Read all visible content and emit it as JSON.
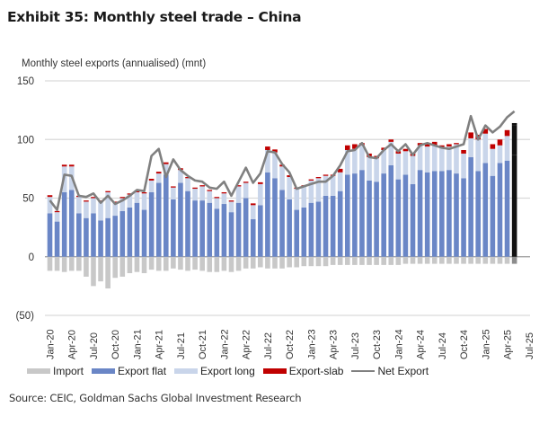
{
  "header": {
    "title": "Exhibit 35: Monthly steel trade – China",
    "subtitle": "Monthly steel exports (annualised) (mnt)",
    "source": "Source: CEIC, Goldman Sachs Global Investment Research"
  },
  "chart_data": {
    "type": "bar",
    "stacked": true,
    "title": "Exhibit 35: Monthly steel trade – China",
    "ylabel": "Monthly steel exports (annualised) (mnt)",
    "xlabel": "",
    "ylim": [
      -50,
      150
    ],
    "yticks": [
      150,
      100,
      50,
      0,
      -50
    ],
    "ytick_labels": [
      "150",
      "100",
      "50",
      "0",
      "(50)"
    ],
    "grid": true,
    "legend_position": "bottom",
    "colors": {
      "Import": "#c8c8c8",
      "Export flat": "#6a86c6",
      "Export long": "#c9d5ea",
      "Export-slab": "#c00000",
      "Net Export": "#808080",
      "highlight": "#111111"
    },
    "xtick_labels": [
      "Jan-20",
      "Apr-20",
      "Jul-20",
      "Oct-20",
      "Jan-21",
      "Apr-21",
      "Jul-21",
      "Oct-21",
      "Jan-22",
      "Apr-22",
      "Jul-22",
      "Oct-22",
      "Jan-23",
      "Apr-23",
      "Jul-23",
      "Oct-23",
      "Jan-24",
      "Apr-24",
      "Jul-24",
      "Oct-24",
      "Jan-25",
      "Apr-25",
      "Jul-25"
    ],
    "categories": [
      "Jan-20",
      "Feb-20",
      "Mar-20",
      "Apr-20",
      "May-20",
      "Jun-20",
      "Jul-20",
      "Aug-20",
      "Sep-20",
      "Oct-20",
      "Nov-20",
      "Dec-20",
      "Jan-21",
      "Feb-21",
      "Mar-21",
      "Apr-21",
      "May-21",
      "Jun-21",
      "Jul-21",
      "Aug-21",
      "Sep-21",
      "Oct-21",
      "Nov-21",
      "Dec-21",
      "Jan-22",
      "Feb-22",
      "Mar-22",
      "Apr-22",
      "May-22",
      "Jun-22",
      "Jul-22",
      "Aug-22",
      "Sep-22",
      "Oct-22",
      "Nov-22",
      "Dec-22",
      "Jan-23",
      "Feb-23",
      "Mar-23",
      "Apr-23",
      "May-23",
      "Jun-23",
      "Jul-23",
      "Aug-23",
      "Sep-23",
      "Oct-23",
      "Nov-23",
      "Dec-23",
      "Jan-24",
      "Feb-24",
      "Mar-24",
      "Apr-24",
      "May-24",
      "Jun-24",
      "Jul-24",
      "Aug-24",
      "Sep-24",
      "Oct-24",
      "Nov-24",
      "Dec-24",
      "Jan-25",
      "Feb-25",
      "Mar-25",
      "Apr-25",
      "May-25"
    ],
    "series": [
      {
        "name": "Export flat",
        "values": [
          37,
          30,
          55,
          57,
          37,
          33,
          37,
          31,
          33,
          35,
          39,
          42,
          46,
          40,
          55,
          63,
          70,
          49,
          63,
          56,
          48,
          48,
          46,
          41,
          45,
          38,
          46,
          50,
          32,
          44,
          72,
          67,
          57,
          49,
          40,
          42,
          46,
          47,
          52,
          52,
          56,
          70,
          71,
          74,
          65,
          64,
          71,
          78,
          66,
          70,
          62,
          74,
          72,
          73,
          73,
          74,
          71,
          67,
          85,
          73,
          80,
          69,
          80,
          82,
          87
        ]
      },
      {
        "name": "Export long",
        "values": [
          14,
          8,
          22,
          20,
          14,
          14,
          13,
          16,
          22,
          11,
          11,
          11,
          9,
          14,
          10,
          8,
          9,
          10,
          11,
          11,
          10,
          12,
          10,
          9,
          9,
          9,
          14,
          13,
          12,
          18,
          19,
          22,
          20,
          19,
          18,
          18,
          19,
          20,
          17,
          17,
          16,
          21,
          21,
          21,
          20,
          20,
          20,
          20,
          22,
          20,
          24,
          21,
          22,
          22,
          20,
          20,
          25,
          21,
          16,
          27,
          25,
          23,
          15,
          21,
          25
        ]
      },
      {
        "name": "Export-slab",
        "values": [
          1.5,
          1,
          1.5,
          1.5,
          1,
          1,
          1,
          1,
          1,
          1,
          1,
          1,
          1,
          1,
          1.5,
          1.5,
          1.5,
          1,
          1.5,
          1,
          1,
          1,
          1,
          1,
          1,
          1,
          1,
          1,
          1.5,
          1.5,
          3,
          2.5,
          1.5,
          1.5,
          1,
          1,
          1,
          1,
          1,
          1,
          3,
          4,
          4,
          2,
          3,
          2,
          2,
          2,
          2,
          2,
          2,
          2,
          3,
          3,
          2,
          2,
          1,
          3,
          5,
          4,
          4,
          4,
          5,
          5,
          2
        ]
      },
      {
        "name": "Import",
        "values": [
          -12,
          -12,
          -13,
          -12,
          -12,
          -17,
          -25,
          -21,
          -27,
          -18,
          -17,
          -14,
          -13,
          -14,
          -11,
          -12,
          -12,
          -10,
          -11,
          -12,
          -11,
          -12,
          -13,
          -13,
          -12,
          -13,
          -12,
          -10,
          -10,
          -9,
          -10,
          -10,
          -10,
          -9,
          -9,
          -8,
          -8,
          -8,
          -8,
          -7,
          -7,
          -7,
          -7,
          -7,
          -7,
          -7,
          -7,
          -7,
          -7,
          -6,
          -6,
          -6,
          -6,
          -6,
          -6,
          -6,
          -6,
          -6,
          -6,
          -6,
          -6,
          -6,
          -6,
          -6,
          -6
        ]
      },
      {
        "name": "Net Export",
        "type": "line",
        "values": [
          48,
          40,
          70,
          69,
          52,
          51,
          54,
          46,
          52,
          45,
          48,
          52,
          57,
          56,
          86,
          92,
          68,
          83,
          74,
          69,
          65,
          64,
          59,
          58,
          64,
          52,
          64,
          76,
          63,
          71,
          90,
          89,
          79,
          72,
          58,
          60,
          62,
          64,
          64,
          69,
          78,
          90,
          91,
          97,
          85,
          84,
          91,
          96,
          90,
          96,
          87,
          95,
          97,
          95,
          93,
          92,
          94,
          96,
          120,
          100,
          112,
          106,
          111,
          119,
          124
        ]
      }
    ],
    "highlight_last_bar": true
  },
  "legend": [
    {
      "label": "Import",
      "kind": "bar",
      "color": "#c8c8c8"
    },
    {
      "label": "Export flat",
      "kind": "bar",
      "color": "#6a86c6"
    },
    {
      "label": "Export long",
      "kind": "bar",
      "color": "#c9d5ea"
    },
    {
      "label": "Export-slab",
      "kind": "bar",
      "color": "#c00000"
    },
    {
      "label": "Net Export",
      "kind": "line",
      "color": "#808080"
    }
  ]
}
